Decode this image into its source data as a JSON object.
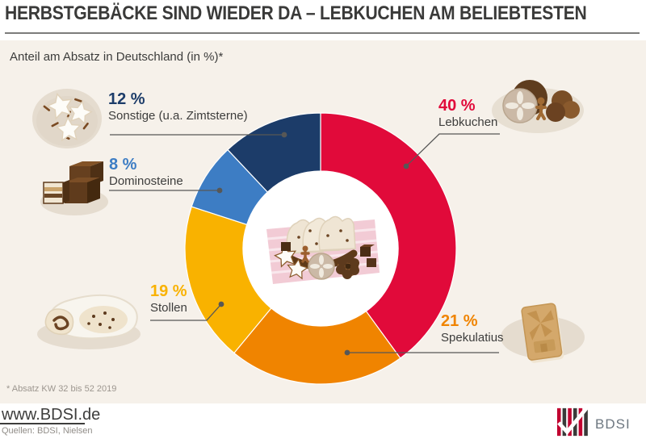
{
  "header": {
    "title": "HERBSTGEBÄCKE SIND WIEDER DA – LEBKUCHEN AM BELIEBTESTEN"
  },
  "panel": {
    "subtitle": "Anteil am Absatz in Deutschland (in %)*",
    "footnote": "* Absatz KW 32 bis 52 2019"
  },
  "chart_data": {
    "type": "pie",
    "variant": "donut",
    "title": "Anteil am Absatz in Deutschland (in %)",
    "unit": "%",
    "start_angle_deg": 0,
    "direction": "clockwise",
    "segments": [
      {
        "label": "Lebkuchen",
        "value": 40,
        "value_label": "40 %",
        "color": "#e10a3a"
      },
      {
        "label": "Spekulatius",
        "value": 21,
        "value_label": "21 %",
        "color": "#f08400"
      },
      {
        "label": "Stollen",
        "value": 19,
        "value_label": "19 %",
        "color": "#f9b200"
      },
      {
        "label": "Dominosteine",
        "value": 8,
        "value_label": "8 %",
        "color": "#3d7dc4"
      },
      {
        "label": "Sonstige (u.a. Zimtsterne)",
        "value": 12,
        "value_label": "12 %",
        "color": "#1c3c69"
      }
    ],
    "center_illustration": "assorted-autumn-pastries-on-pink-cloth"
  },
  "illustrations": {
    "zimtsterne": "cinnamon-star-cookies",
    "dominosteine": "chocolate-domino-cubes",
    "stollen": "powdered-stollen-loaf",
    "lebkuchen": "gingerbread-cookies",
    "spekulatius": "windmill-spice-cookie"
  },
  "colors": {
    "panel_bg": "#f6f1ea",
    "title_text": "#3a3a39",
    "leader_line": "#575756",
    "logo_red": "#c10230",
    "logo_dark": "#3a3a39"
  },
  "footer": {
    "website": "www.BDSI.de",
    "sources": "Quellen: BDSI, Nielsen",
    "logo_text": "BDSI"
  }
}
